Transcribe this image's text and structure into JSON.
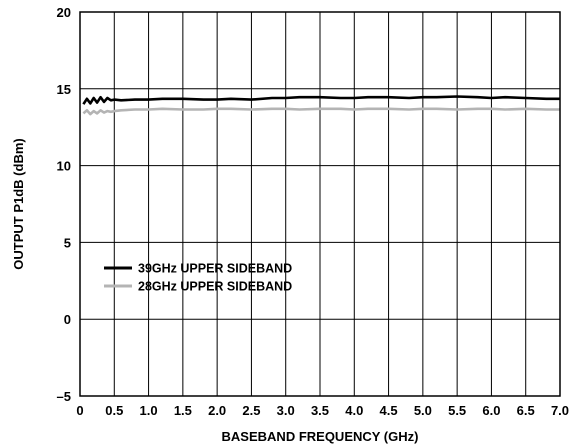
{
  "chart_data": {
    "type": "line",
    "title": "",
    "xlabel": "BASEBAND FREQUENCY (GHz)",
    "ylabel": "OUTPUT P1dB (dBm)",
    "xlim": [
      0,
      7.0
    ],
    "ylim": [
      -5,
      20
    ],
    "x_ticks": [
      "0",
      "0.5",
      "1.0",
      "1.5",
      "2.0",
      "2.5",
      "3.0",
      "3.5",
      "4.0",
      "4.5",
      "5.0",
      "5.5",
      "6.0",
      "6.5",
      "7.0"
    ],
    "y_ticks": [
      "20",
      "15",
      "10",
      "5",
      "0",
      "–5"
    ],
    "grid": true,
    "legend_position": "lower-left",
    "series": [
      {
        "name": "39GHz UPPER SIDEBAND",
        "color": "#000000",
        "x": [
          0.05,
          0.1,
          0.15,
          0.2,
          0.25,
          0.3,
          0.35,
          0.4,
          0.45,
          0.5,
          0.6,
          0.8,
          1.0,
          1.2,
          1.5,
          1.8,
          2.0,
          2.2,
          2.5,
          2.8,
          3.0,
          3.2,
          3.5,
          3.8,
          4.0,
          4.2,
          4.5,
          4.8,
          5.0,
          5.2,
          5.5,
          5.8,
          6.0,
          6.2,
          6.5,
          6.8,
          7.0
        ],
        "y": [
          14.0,
          14.35,
          14.05,
          14.4,
          14.1,
          14.45,
          14.15,
          14.4,
          14.25,
          14.3,
          14.25,
          14.3,
          14.3,
          14.35,
          14.35,
          14.3,
          14.3,
          14.35,
          14.3,
          14.4,
          14.4,
          14.45,
          14.45,
          14.4,
          14.4,
          14.45,
          14.45,
          14.4,
          14.45,
          14.45,
          14.5,
          14.45,
          14.4,
          14.45,
          14.4,
          14.35,
          14.35
        ]
      },
      {
        "name": "28GHz UPPER SIDEBAND",
        "color": "#b4b4b4",
        "x": [
          0.05,
          0.1,
          0.15,
          0.2,
          0.25,
          0.3,
          0.35,
          0.4,
          0.45,
          0.5,
          0.6,
          0.8,
          1.0,
          1.2,
          1.5,
          1.8,
          2.0,
          2.2,
          2.5,
          2.8,
          3.0,
          3.2,
          3.5,
          3.8,
          4.0,
          4.2,
          4.5,
          4.8,
          5.0,
          5.2,
          5.5,
          5.8,
          6.0,
          6.2,
          6.5,
          6.8,
          7.0
        ],
        "y": [
          13.4,
          13.6,
          13.35,
          13.55,
          13.4,
          13.6,
          13.45,
          13.55,
          13.5,
          13.55,
          13.6,
          13.65,
          13.65,
          13.7,
          13.65,
          13.65,
          13.7,
          13.7,
          13.65,
          13.7,
          13.7,
          13.65,
          13.7,
          13.7,
          13.65,
          13.7,
          13.7,
          13.65,
          13.7,
          13.7,
          13.65,
          13.7,
          13.7,
          13.65,
          13.7,
          13.65,
          13.65
        ]
      }
    ]
  }
}
